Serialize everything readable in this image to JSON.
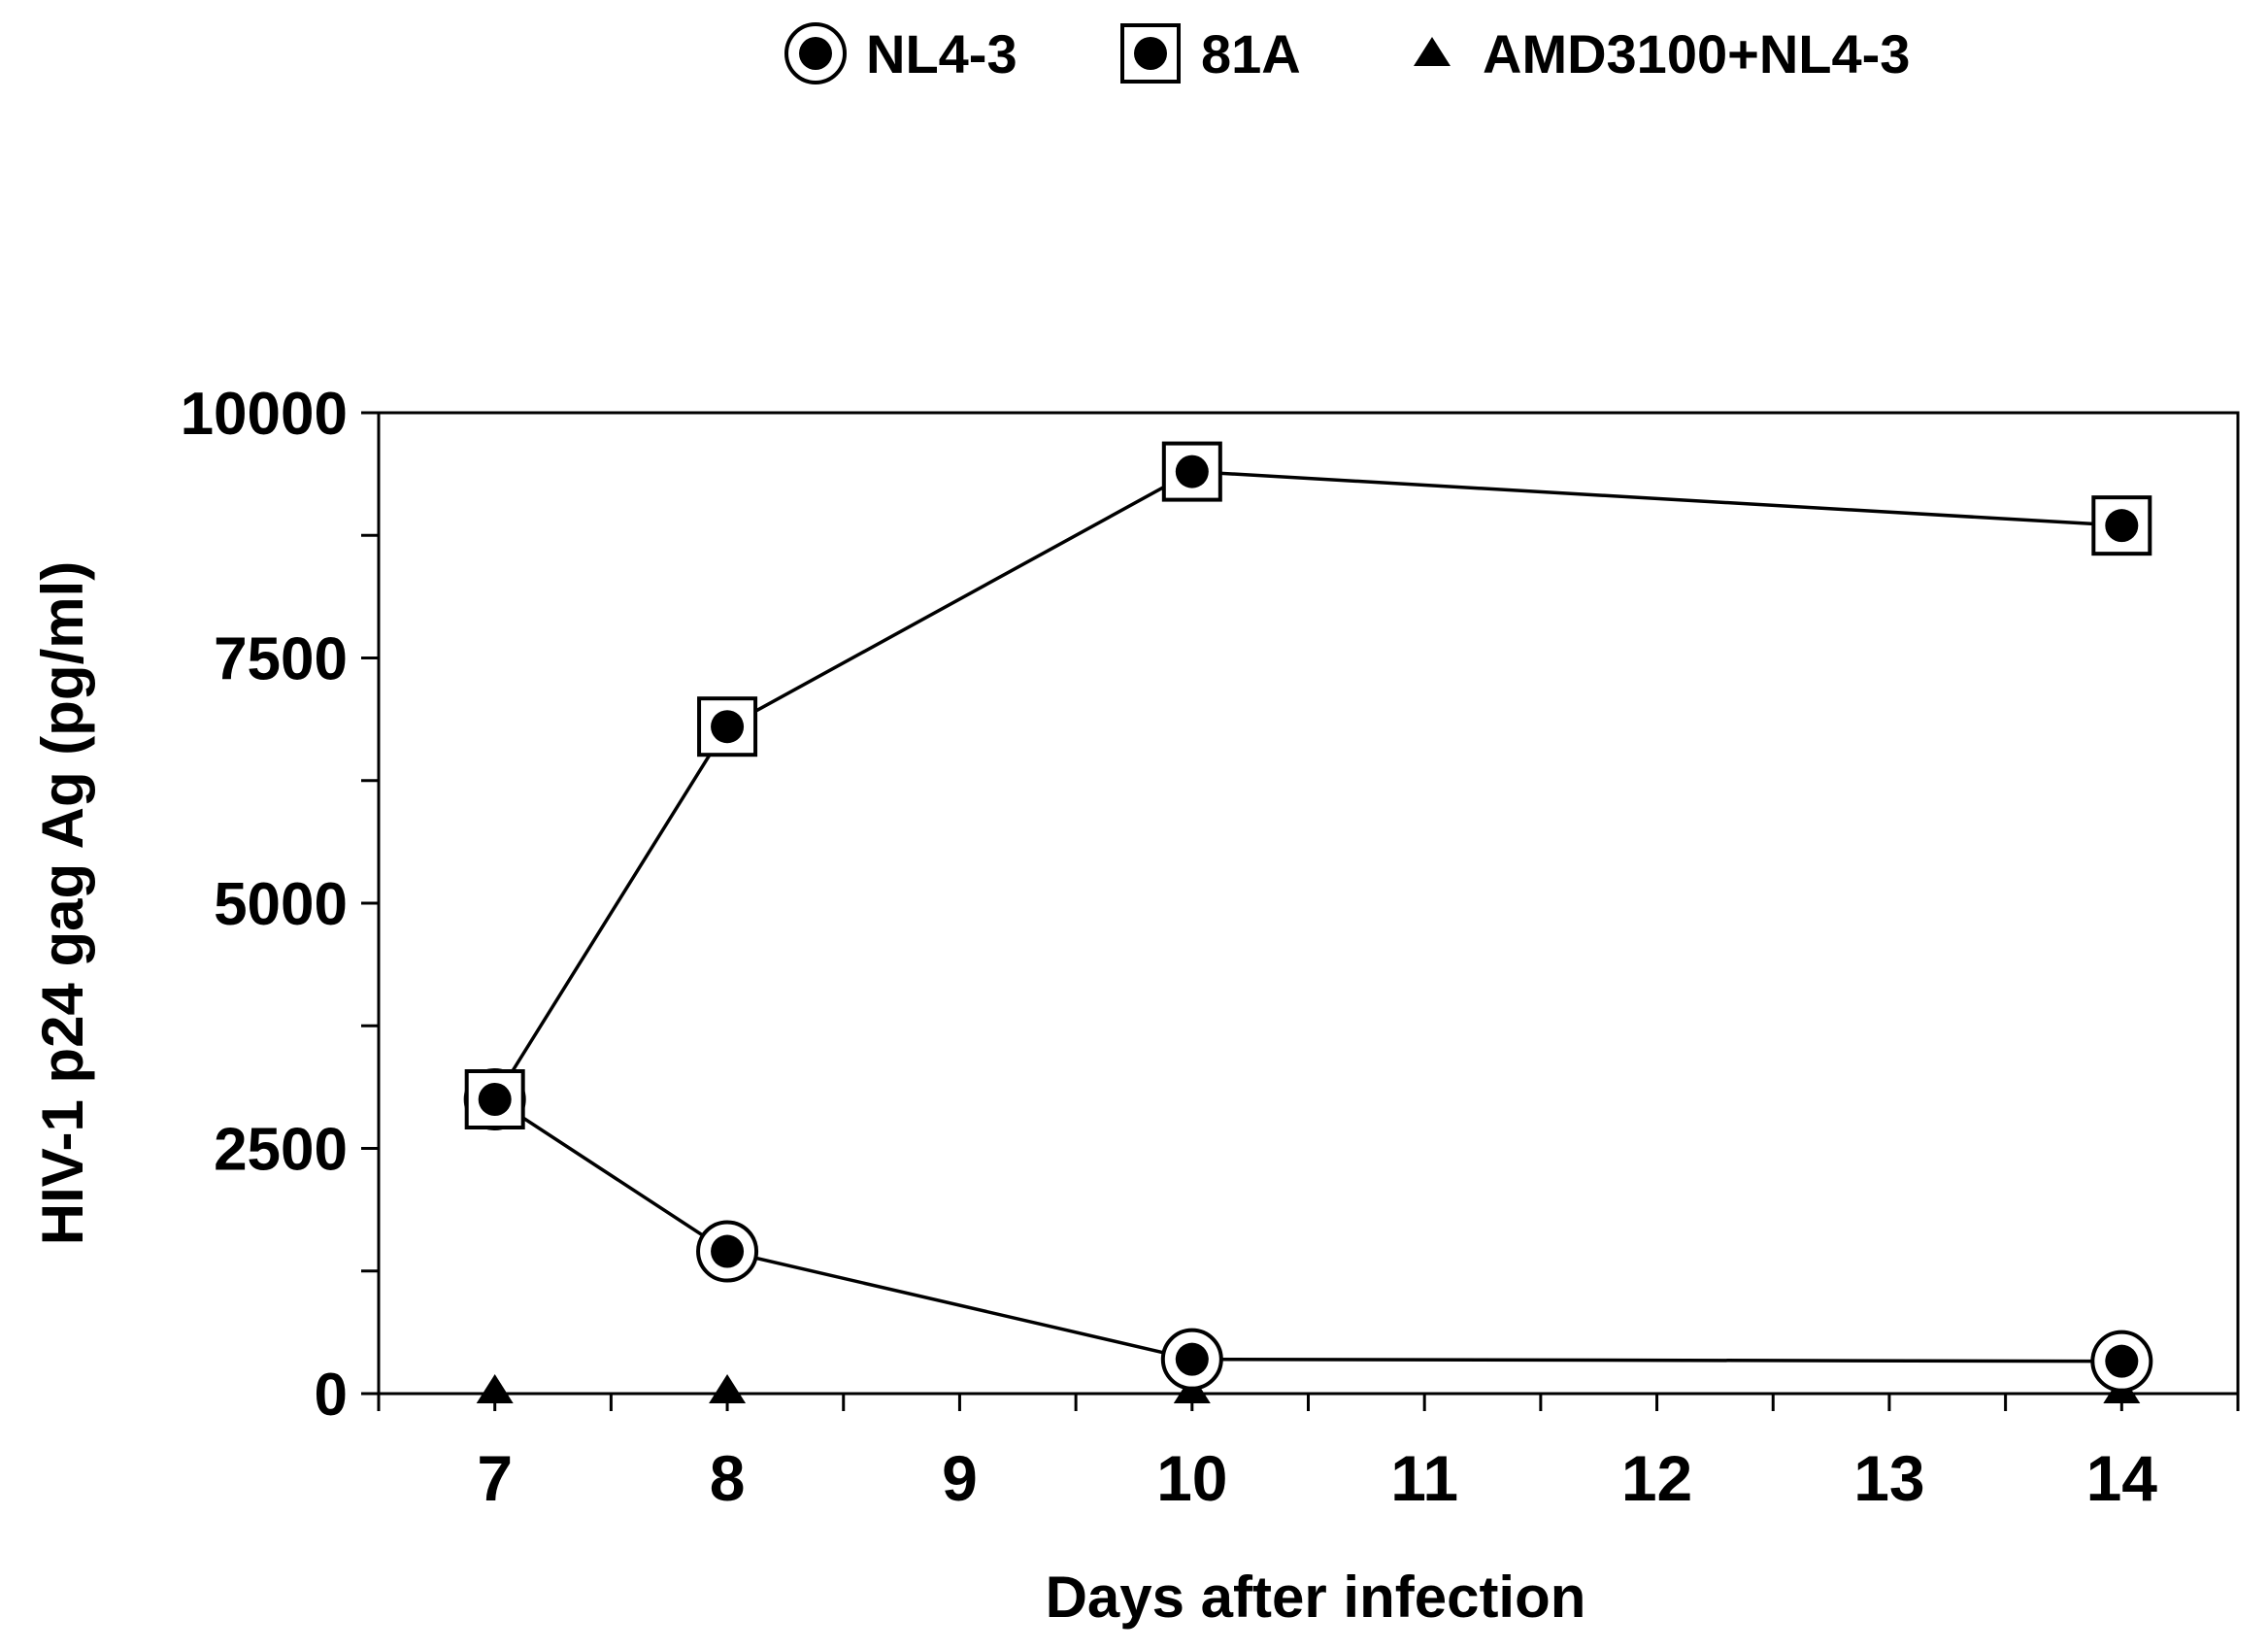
{
  "chart_data": {
    "type": "line",
    "title": "",
    "xlabel": "Days after infection",
    "ylabel": "HIV-1 p24 gag Ag (pg/ml)",
    "xlim": [
      6.5,
      14.5
    ],
    "ylim": [
      0,
      10000
    ],
    "x_ticks": [
      7,
      8,
      9,
      10,
      11,
      12,
      13,
      14
    ],
    "x_tick_labels": [
      "7",
      "8",
      "9",
      "10",
      "11",
      "12",
      "13",
      "14"
    ],
    "y_ticks": [
      0,
      2500,
      5000,
      7500,
      10000
    ],
    "y_tick_labels": [
      "0",
      "2500",
      "5000",
      "7500",
      "10000"
    ],
    "grid": false,
    "legend_position": "top-center",
    "series": [
      {
        "name": "NL4-3",
        "marker": "circle-dot",
        "x": [
          7,
          8,
          10,
          14
        ],
        "y": [
          3000,
          1450,
          350,
          330
        ]
      },
      {
        "name": "81A",
        "marker": "square-dot",
        "x": [
          7,
          8,
          10,
          14
        ],
        "y": [
          3000,
          6800,
          9400,
          8850
        ]
      },
      {
        "name": "AMD3100+NL4-3",
        "marker": "triangle",
        "x": [
          7,
          8,
          10,
          14
        ],
        "y": [
          0,
          0,
          0,
          0
        ]
      }
    ]
  }
}
